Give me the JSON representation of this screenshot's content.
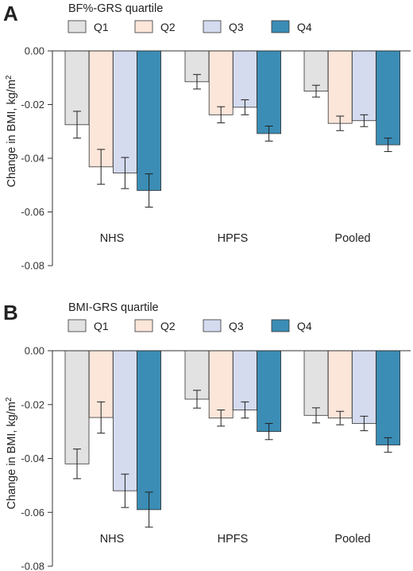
{
  "colors": {
    "Q1": "#e2e2e2",
    "Q2": "#fce6da",
    "Q3": "#d5dbef",
    "Q4": "#3b8db5",
    "axis": "#333333",
    "bar_outline": "#333333"
  },
  "chart_data": [
    {
      "type": "bar",
      "panel": "A",
      "legend_title": "BF%-GRS quartile",
      "legend_placement": "top",
      "categories": [
        "NHS",
        "HPFS",
        "Pooled"
      ],
      "ylabel": "Change in BMI, kg/m",
      "ylabel_superscript": "2",
      "ylim": [
        -0.08,
        0.0
      ],
      "yticks": [
        0.0,
        -0.02,
        -0.04,
        -0.06,
        -0.08
      ],
      "ytick_labels": [
        "0.00",
        "-0.02",
        "-0.04",
        "-0.06",
        "-0.08"
      ],
      "grid": false,
      "series": [
        {
          "name": "Q1",
          "values": [
            -0.0275,
            -0.0115,
            -0.015
          ],
          "err": [
            0.005,
            0.0027,
            0.0022
          ]
        },
        {
          "name": "Q2",
          "values": [
            -0.0432,
            -0.0238,
            -0.027
          ],
          "err": [
            0.0065,
            0.003,
            0.0027
          ]
        },
        {
          "name": "Q3",
          "values": [
            -0.0455,
            -0.021,
            -0.026
          ],
          "err": [
            0.0058,
            0.0028,
            0.0022
          ]
        },
        {
          "name": "Q4",
          "values": [
            -0.052,
            -0.0308,
            -0.035
          ],
          "err": [
            0.0062,
            0.0028,
            0.0025
          ]
        }
      ]
    },
    {
      "type": "bar",
      "panel": "B",
      "legend_title": "BMI-GRS quartile",
      "legend_placement": "top",
      "categories": [
        "NHS",
        "HPFS",
        "Pooled"
      ],
      "ylabel": "Change in BMI, kg/m",
      "ylabel_superscript": "2",
      "ylim": [
        -0.08,
        0.0
      ],
      "yticks": [
        0.0,
        -0.02,
        -0.04,
        -0.06,
        -0.08
      ],
      "ytick_labels": [
        "0.00",
        "-0.02",
        "-0.04",
        "-0.06",
        "-0.08"
      ],
      "grid": false,
      "series": [
        {
          "name": "Q1",
          "values": [
            -0.042,
            -0.018,
            -0.024
          ],
          "err": [
            0.0055,
            0.0033,
            0.0028
          ]
        },
        {
          "name": "Q2",
          "values": [
            -0.0248,
            -0.025,
            -0.025
          ],
          "err": [
            0.0058,
            0.003,
            0.0025
          ]
        },
        {
          "name": "Q3",
          "values": [
            -0.052,
            -0.022,
            -0.027
          ],
          "err": [
            0.0062,
            0.003,
            0.0027
          ]
        },
        {
          "name": "Q4",
          "values": [
            -0.059,
            -0.03,
            -0.035
          ],
          "err": [
            0.0065,
            0.003,
            0.0027
          ]
        }
      ]
    }
  ]
}
